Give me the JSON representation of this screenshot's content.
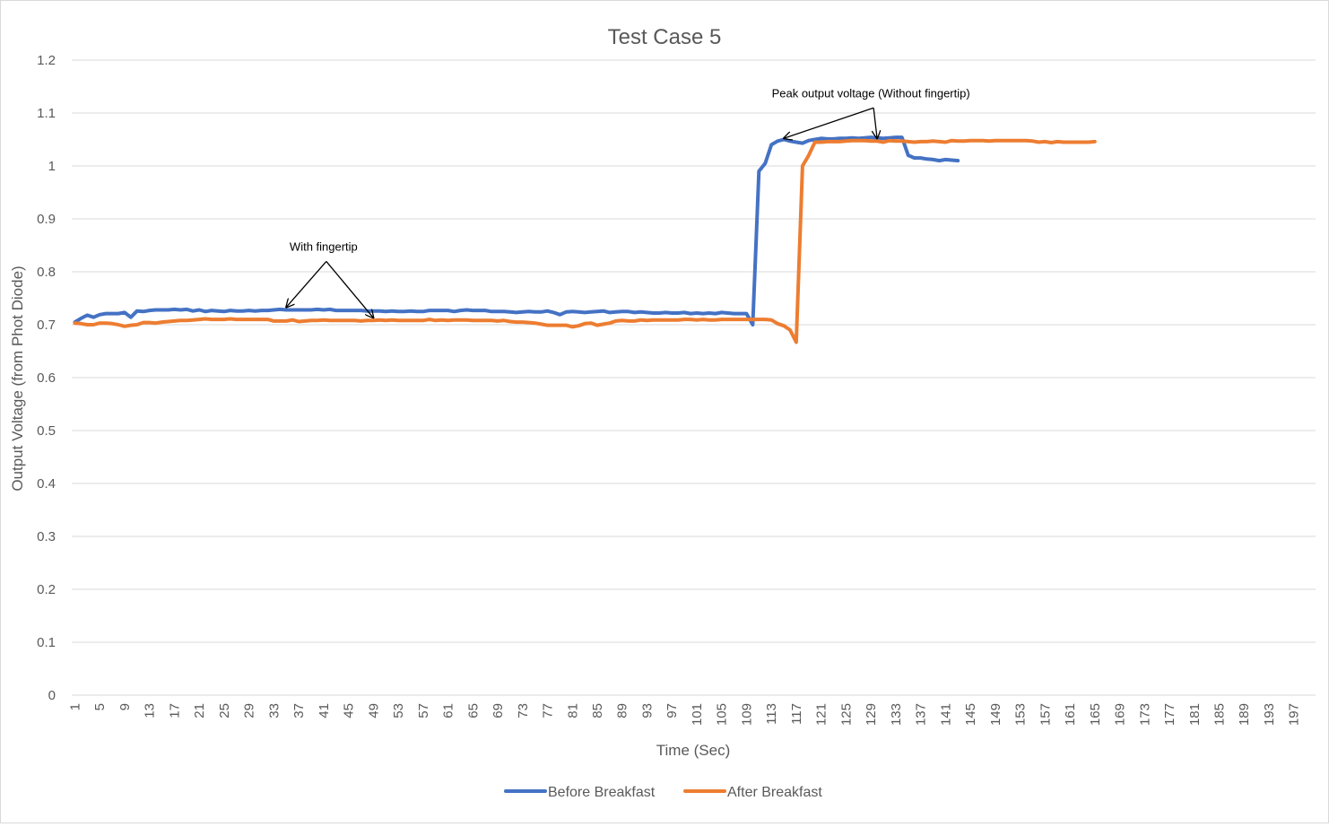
{
  "chart_data": {
    "type": "line",
    "title": "Test Case 5",
    "xlabel": "Time (Sec)",
    "ylabel": "Output Voltage (from Phot Diode)",
    "x_range": [
      1,
      200
    ],
    "x_tick_step": 4,
    "ylim": [
      0,
      1.2
    ],
    "y_ticks": [
      0,
      0.1,
      0.2,
      0.3,
      0.4,
      0.5,
      0.6,
      0.7,
      0.8,
      0.9,
      1,
      1.1,
      1.2
    ],
    "grid": "horizontal",
    "legend_position": "bottom",
    "series": [
      {
        "name": "Before Breakfast",
        "color": "#4472c4",
        "values": [
          0.705,
          0.712,
          0.718,
          0.714,
          0.719,
          0.721,
          0.721,
          0.721,
          0.723,
          0.714,
          0.726,
          0.725,
          0.727,
          0.728,
          0.728,
          0.728,
          0.729,
          0.728,
          0.729,
          0.726,
          0.728,
          0.725,
          0.727,
          0.726,
          0.725,
          0.727,
          0.726,
          0.726,
          0.727,
          0.726,
          0.727,
          0.727,
          0.728,
          0.729,
          0.728,
          0.728,
          0.728,
          0.728,
          0.728,
          0.729,
          0.728,
          0.729,
          0.727,
          0.727,
          0.727,
          0.727,
          0.727,
          0.726,
          0.726,
          0.726,
          0.725,
          0.726,
          0.725,
          0.725,
          0.726,
          0.725,
          0.725,
          0.727,
          0.727,
          0.727,
          0.727,
          0.725,
          0.727,
          0.728,
          0.727,
          0.727,
          0.727,
          0.725,
          0.725,
          0.725,
          0.724,
          0.723,
          0.724,
          0.725,
          0.724,
          0.724,
          0.726,
          0.723,
          0.719,
          0.724,
          0.725,
          0.724,
          0.723,
          0.724,
          0.725,
          0.726,
          0.723,
          0.724,
          0.725,
          0.725,
          0.723,
          0.724,
          0.723,
          0.722,
          0.722,
          0.723,
          0.722,
          0.722,
          0.723,
          0.721,
          0.722,
          0.721,
          0.722,
          0.721,
          0.723,
          0.722,
          0.721,
          0.721,
          0.721,
          0.7,
          0.99,
          1.005,
          1.04,
          1.047,
          1.05,
          1.047,
          1.045,
          1.043,
          1.048,
          1.05,
          1.052,
          1.051,
          1.051,
          1.052,
          1.052,
          1.053,
          1.052,
          1.053,
          1.054,
          1.053,
          1.052,
          1.053,
          1.054,
          1.054,
          1.02,
          1.015,
          1.015,
          1.013,
          1.012,
          1.01,
          1.012,
          1.011,
          1.01
        ]
      },
      {
        "name": "After Breakfast",
        "color": "#ed7d31",
        "values": [
          0.703,
          0.702,
          0.7,
          0.7,
          0.703,
          0.703,
          0.702,
          0.7,
          0.697,
          0.699,
          0.7,
          0.704,
          0.704,
          0.703,
          0.705,
          0.706,
          0.707,
          0.708,
          0.708,
          0.709,
          0.71,
          0.711,
          0.71,
          0.71,
          0.71,
          0.711,
          0.71,
          0.71,
          0.71,
          0.71,
          0.71,
          0.71,
          0.707,
          0.707,
          0.707,
          0.709,
          0.706,
          0.707,
          0.708,
          0.708,
          0.709,
          0.708,
          0.708,
          0.708,
          0.708,
          0.708,
          0.707,
          0.708,
          0.708,
          0.709,
          0.708,
          0.709,
          0.708,
          0.708,
          0.708,
          0.708,
          0.708,
          0.71,
          0.708,
          0.709,
          0.708,
          0.709,
          0.709,
          0.709,
          0.708,
          0.708,
          0.708,
          0.708,
          0.707,
          0.708,
          0.706,
          0.705,
          0.705,
          0.704,
          0.703,
          0.701,
          0.699,
          0.699,
          0.699,
          0.699,
          0.696,
          0.698,
          0.702,
          0.703,
          0.699,
          0.701,
          0.703,
          0.707,
          0.708,
          0.707,
          0.707,
          0.709,
          0.708,
          0.709,
          0.709,
          0.709,
          0.709,
          0.709,
          0.71,
          0.71,
          0.709,
          0.71,
          0.709,
          0.709,
          0.71,
          0.71,
          0.71,
          0.71,
          0.71,
          0.71,
          0.71,
          0.71,
          0.709,
          0.702,
          0.698,
          0.69,
          0.667,
          1.0,
          1.02,
          1.045,
          1.045,
          1.046,
          1.046,
          1.046,
          1.047,
          1.048,
          1.048,
          1.048,
          1.047,
          1.047,
          1.045,
          1.048,
          1.047,
          1.047,
          1.046,
          1.045,
          1.046,
          1.046,
          1.047,
          1.046,
          1.045,
          1.048,
          1.047,
          1.047,
          1.048,
          1.048,
          1.048,
          1.047,
          1.048,
          1.048,
          1.048,
          1.048,
          1.048,
          1.048,
          1.047,
          1.045,
          1.046,
          1.044,
          1.046,
          1.045,
          1.045,
          1.045,
          1.045,
          1.045,
          1.046
        ]
      }
    ],
    "annotations": [
      {
        "text": "With fingertip",
        "label_at": [
          41,
          0.84
        ],
        "arrows_to": [
          [
            35,
            0.728
          ],
          [
            49,
            0.708
          ]
        ]
      },
      {
        "text": "Peak output voltage (Without fingertip)",
        "label_at": [
          129,
          1.13
        ],
        "arrows_to": [
          [
            115,
            1.047
          ],
          [
            130,
            1.047
          ]
        ]
      }
    ]
  }
}
